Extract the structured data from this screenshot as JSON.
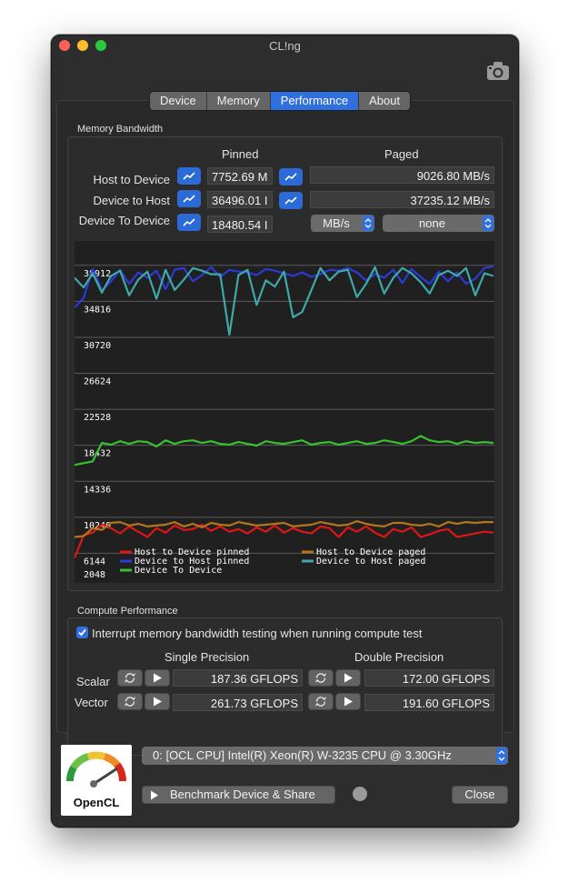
{
  "window": {
    "title": "CL!ng"
  },
  "tabs": [
    {
      "label": "Device",
      "active": false
    },
    {
      "label": "Memory",
      "active": false
    },
    {
      "label": "Performance",
      "active": true
    },
    {
      "label": "About",
      "active": false
    }
  ],
  "memory_bandwidth": {
    "section_title": "Memory Bandwidth",
    "pinned_header": "Pinned",
    "paged_header": "Paged",
    "rows": [
      {
        "label": "Host to Device",
        "pinned": "7752.69 M",
        "paged": "9026.80 MB/s"
      },
      {
        "label": "Device to Host",
        "pinned": "36496.01 I",
        "paged": "37235.12 MB/s"
      },
      {
        "label": "Device To Device",
        "pinned": "18480.54 I"
      }
    ],
    "unit_select": "MB/s",
    "filter_select": "none"
  },
  "chart_data": {
    "type": "line",
    "ylim": [
      2048,
      40960
    ],
    "y_ticks": [
      "38912",
      "34816",
      "30720",
      "26624",
      "22528",
      "18432",
      "14336",
      "10240",
      "6144",
      "2048"
    ],
    "grid": true,
    "legend_position": "bottom",
    "x": [
      0,
      1,
      2,
      3,
      4,
      5,
      6,
      7,
      8,
      9,
      10,
      11,
      12,
      13,
      14,
      15,
      16,
      17,
      18,
      19,
      20,
      21,
      22,
      23,
      24,
      25,
      26,
      27,
      28,
      29,
      30,
      31,
      32,
      33,
      34,
      35,
      36,
      37,
      38,
      39,
      40,
      41,
      42,
      43,
      44,
      45,
      46
    ],
    "series": [
      {
        "name": "Host to Device pinned",
        "color": "#e01515",
        "values": [
          5600,
          8200,
          8500,
          9400,
          9000,
          8400,
          9200,
          8600,
          8000,
          9000,
          8500,
          9300,
          8800,
          8900,
          9400,
          8700,
          9200,
          8600,
          8900,
          8400,
          9100,
          8600,
          9300,
          8500,
          9000,
          8600,
          8400,
          9200,
          9000,
          8000,
          9100,
          8600,
          9200,
          8500,
          8000,
          8900,
          8600,
          9100,
          8000,
          8300,
          8700,
          8900,
          8000,
          8200,
          8400,
          8600,
          8500
        ]
      },
      {
        "name": "Device to Host pinned",
        "color": "#2b3ad8",
        "values": [
          34100,
          35200,
          38500,
          36100,
          37100,
          38400,
          36800,
          38100,
          37500,
          38300,
          36200,
          38400,
          38600,
          37100,
          37800,
          38700,
          37600,
          38400,
          38200,
          38100,
          37800,
          38500,
          38300,
          38000,
          37700,
          38100,
          37600,
          37900,
          38400,
          38300,
          38600,
          38100,
          37200,
          37900,
          37500,
          38400,
          36900,
          38500,
          37600,
          36800,
          38200,
          37100,
          38100,
          36800,
          37400,
          38600,
          38800
        ]
      },
      {
        "name": "Device To Device",
        "color": "#36c22e",
        "values": [
          16200,
          16400,
          16600,
          18700,
          18500,
          18900,
          18600,
          18900,
          18800,
          18300,
          19000,
          18600,
          18900,
          19000,
          18700,
          18900,
          18600,
          18500,
          18800,
          18600,
          18400,
          18900,
          18700,
          18600,
          18800,
          19000,
          18500,
          18700,
          18800,
          18500,
          18700,
          18900,
          18600,
          18700,
          19000,
          18800,
          18600,
          18900,
          19500,
          19000,
          18800,
          18900,
          18600,
          18900,
          18700,
          18800,
          18700
        ]
      },
      {
        "name": "Host to Device paged",
        "color": "#b3761e",
        "values": [
          8000,
          8100,
          9000,
          8800,
          9600,
          9700,
          9300,
          9500,
          9200,
          9300,
          9400,
          9700,
          9200,
          9500,
          9100,
          9600,
          9400,
          9300,
          9700,
          9500,
          9300,
          9400,
          9500,
          9600,
          9200,
          9300,
          9400,
          9700,
          9500,
          9300,
          9400,
          9800,
          9500,
          9300,
          9200,
          9600,
          9600,
          9400,
          9300,
          9500,
          9200,
          9700,
          9500,
          9700,
          9600,
          9700,
          9700
        ]
      },
      {
        "name": "Device to Host paged",
        "color": "#3ea9a8",
        "values": [
          37500,
          36400,
          38000,
          35800,
          37700,
          38300,
          35500,
          37300,
          38200,
          35100,
          38400,
          36100,
          37300,
          38600,
          38300,
          37900,
          37900,
          31000,
          37800,
          38400,
          34400,
          37200,
          36500,
          38200,
          33000,
          33600,
          36100,
          38600,
          37200,
          38200,
          38400,
          35300,
          36800,
          38700,
          35700,
          37500,
          38600,
          38000,
          37000,
          35700,
          37800,
          38300,
          37700,
          38600,
          35500,
          38000,
          37700
        ]
      }
    ]
  },
  "compute": {
    "section_title": "Compute Performance",
    "interrupt_label": "Interrupt memory bandwidth testing when running compute test",
    "interrupt_checked": true,
    "single_header": "Single Precision",
    "double_header": "Double Precision",
    "rows": [
      {
        "label": "Scalar",
        "single": "187.36 GFLOPS",
        "double": "172.00 GFLOPS"
      },
      {
        "label": "Vector",
        "single": "261.73 GFLOPS",
        "double": "191.60 GFLOPS"
      }
    ]
  },
  "device_select": "0: [OCL CPU] Intel(R) Xeon(R) W-3235 CPU @ 3.30GHz",
  "benchmark_label": "Benchmark Device & Share",
  "close_label": "Close",
  "logo_text": "OpenCL",
  "colors": {
    "accent": "#2f6fde",
    "window_bg": "#2d2d2d"
  }
}
